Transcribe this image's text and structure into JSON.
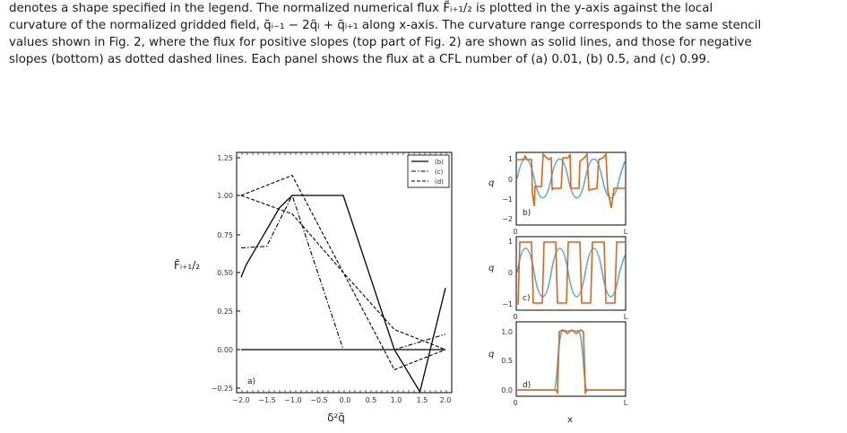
{
  "caption": {
    "line1": "denotes a shape specified in the legend. The normalized numerical flux F̃ᵢ₊₁/₂ is plotted in the y-axis against the local",
    "line2": "curvature of the normalized gridded field, q̃ᵢ₋₁ − 2q̃ᵢ + q̃ᵢ₊₁ along x-axis. The curvature range corresponds to the same stencil",
    "line3": "values shown in Fig. 2, where the flux for positive slopes (top part of Fig. 2) are shown as solid lines, and those for negative",
    "line4": "slopes (bottom) as dotted dashed lines. Each panel shows the flux at a CFL number of (a) 0.01, (b) 0.5, and (c) 0.99."
  },
  "main_plot": {
    "ylabel": "F̃ᵢ₊₁/₂",
    "xlabel": "δ²q̃",
    "panel_label": "a)",
    "legend": [
      "(b)",
      "(c)",
      "(d)"
    ],
    "yticks": [
      "1.25",
      "1.00",
      "0.75",
      "0.50",
      "0.25",
      "0.00",
      "−0.25"
    ],
    "xticks": [
      "−2.0",
      "−1.5",
      "−1.0",
      "−0.5",
      "0.0",
      "0.5",
      "1.0",
      "1.5",
      "2.0"
    ]
  },
  "side_plots": {
    "b": {
      "label": "b)",
      "ylabel": "q",
      "yticks": [
        "1",
        "0",
        "−1",
        "−2"
      ],
      "x0": "0",
      "xL": "L"
    },
    "c": {
      "label": "c)",
      "ylabel": "q",
      "yticks": [
        "1",
        "0",
        "−1"
      ],
      "x0": "0",
      "xL": "L"
    },
    "d": {
      "label": "d)",
      "ylabel": "q",
      "yticks": [
        "1.0",
        "0.5",
        "0.0"
      ],
      "x0": "0",
      "xL": "L",
      "xlabel": "x"
    }
  },
  "colors": {
    "exact": "#5aaad8",
    "numerical": "#d9661a",
    "flux": "#000000"
  },
  "chart_data": [
    {
      "type": "line",
      "xlabel": "δ²q̃",
      "ylabel": "F̃ᵢ₊₁/₂",
      "xlim": [
        -2.0,
        2.0
      ],
      "ylim": [
        -0.25,
        1.25
      ],
      "grid": false,
      "legend_position": "top-right",
      "series": [
        {
          "name": "(b)",
          "style": "solid",
          "x": [
            -2.0,
            -1.9,
            -1.25,
            -1.0,
            -0.5,
            0.0,
            1.0,
            2.0
          ],
          "y": [
            0.47,
            0.55,
            0.92,
            1.0,
            1.0,
            1.0,
            0.0,
            0.0
          ]
        },
        {
          "name": "(b)",
          "style": "solid",
          "x": [
            -2.0,
            -1.0,
            0.0,
            1.0,
            1.5,
            2.0
          ],
          "y": [
            0.0,
            0.0,
            0.0,
            0.0,
            -0.3,
            0.4
          ]
        },
        {
          "name": "(c)",
          "style": "dashdot",
          "x": [
            -2.0,
            -1.5,
            -1.0,
            -0.5,
            0.0,
            1.0,
            2.0
          ],
          "y": [
            0.66,
            0.67,
            1.0,
            0.5,
            0.0,
            0.0,
            0.1
          ]
        },
        {
          "name": "(d)",
          "style": "dashed",
          "x": [
            -2.0,
            -1.0,
            0.0,
            1.0,
            2.0
          ],
          "y": [
            1.0,
            1.13,
            0.5,
            -0.13,
            0.0
          ]
        },
        {
          "name": "(d)",
          "style": "dashed",
          "x": [
            -2.0,
            -1.0,
            0.0,
            1.0,
            2.0
          ],
          "y": [
            1.0,
            0.88,
            0.5,
            0.13,
            0.0
          ]
        }
      ]
    }
  ]
}
